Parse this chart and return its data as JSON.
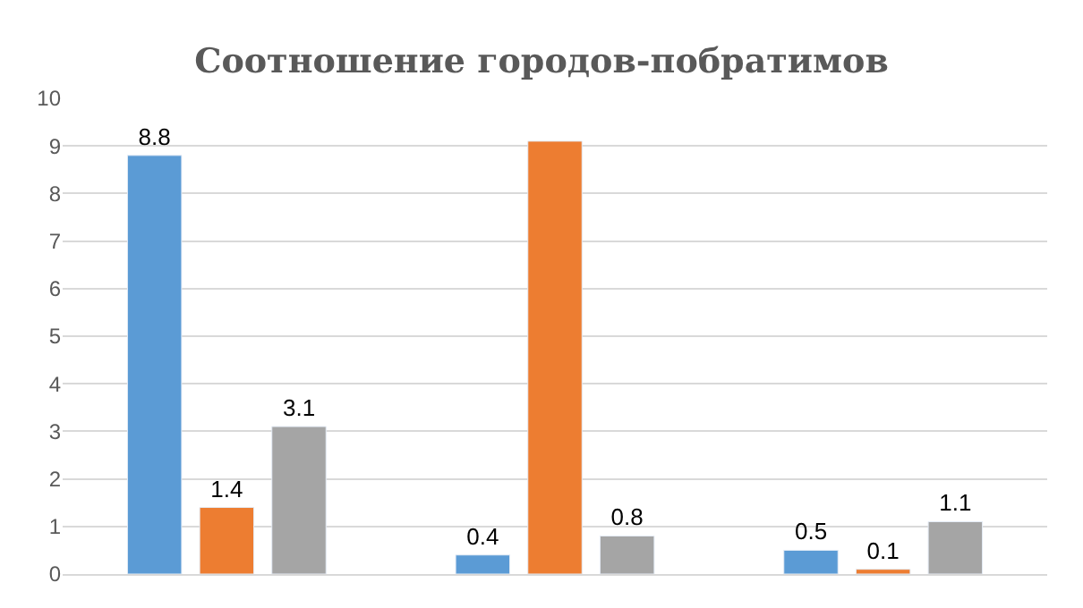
{
  "chart_data": {
    "type": "bar",
    "title": "Соотношение городов-побратимов",
    "categories": [
      null,
      null,
      null
    ],
    "series": [
      {
        "color": "#5b9bd5",
        "values": [
          8.8,
          0.4,
          0.5
        ],
        "value_labels": [
          "8.8",
          "0.4",
          "0.5"
        ]
      },
      {
        "color": "#ed7d31",
        "values": [
          1.4,
          9.1,
          0.1
        ],
        "value_labels": [
          "1.4",
          null,
          "0.1"
        ]
      },
      {
        "color": "#a5a5a5",
        "values": [
          3.1,
          0.8,
          1.1
        ],
        "value_labels": [
          "3.1",
          "0.8",
          "1.1"
        ]
      }
    ],
    "ylim": [
      0,
      10
    ],
    "yticks": [
      0,
      1,
      2,
      3,
      4,
      5,
      6,
      7,
      8,
      9,
      10
    ],
    "grid": "y"
  }
}
